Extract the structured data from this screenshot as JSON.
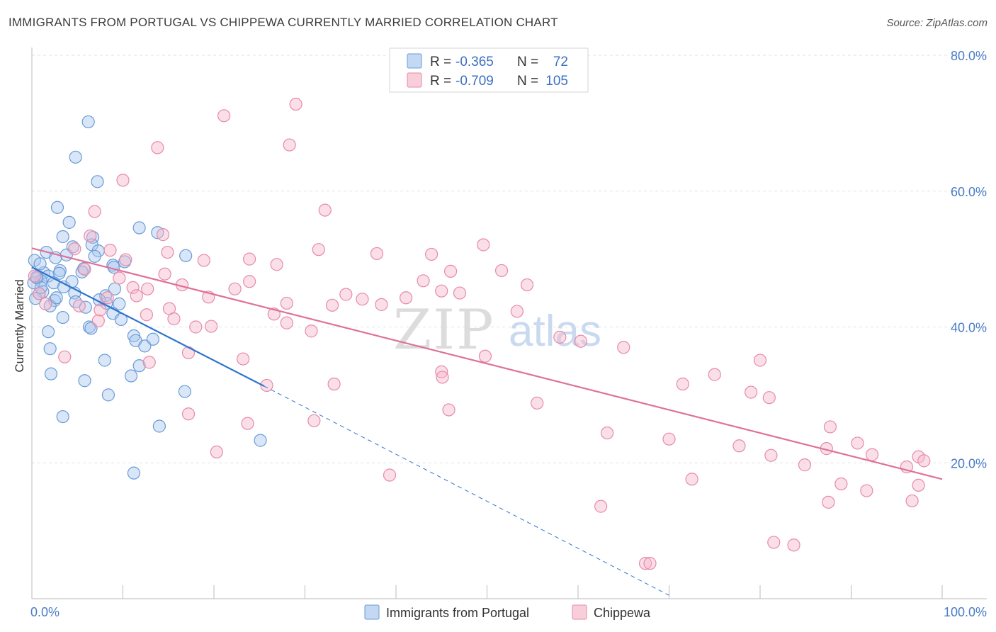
{
  "header": {
    "title": "IMMIGRANTS FROM PORTUGAL VS CHIPPEWA CURRENTLY MARRIED CORRELATION CHART",
    "source": "Source: ZipAtlas.com"
  },
  "watermark": {
    "zip": "ZIP",
    "atlas": "atlas"
  },
  "legend": {
    "rows": [
      {
        "r_label": "R =",
        "r_value": "-0.365",
        "n_label": "N =",
        "n_value": "72",
        "color": "#a8c8ee",
        "stroke": "#6a9bd8"
      },
      {
        "r_label": "R =",
        "r_value": "-0.709",
        "n_label": "N =",
        "n_value": "105",
        "color": "#f6b9cc",
        "stroke": "#e68aa8"
      }
    ],
    "bottom": [
      {
        "label": "Immigrants from Portugal",
        "color": "#a8c8ee",
        "stroke": "#6a9bd8"
      },
      {
        "label": "Chippewa",
        "color": "#f6b9cc",
        "stroke": "#e68aa8"
      }
    ]
  },
  "chart_data": {
    "type": "scatter",
    "xlabel": "",
    "ylabel": "Currently Married",
    "xlim": [
      0,
      100
    ],
    "ylim": [
      0,
      80
    ],
    "x_tick_labels": [
      "0.0%",
      "100.0%"
    ],
    "y_ticks": [
      20,
      40,
      60,
      80
    ],
    "y_tick_labels": [
      "20.0%",
      "40.0%",
      "60.0%",
      "80.0%"
    ],
    "grid": true,
    "legend_position": "top-center",
    "series": [
      {
        "name": "Immigrants from Portugal",
        "color": "#a8c8ee",
        "stroke": "#6a9bd8",
        "line_color": "#2f74d0",
        "trend": {
          "x0": 0,
          "y0": 48.8,
          "x1": 25.5,
          "y1": 31.3,
          "dash_to_x": 70,
          "dash_to_y": 0.5
        },
        "points": [
          [
            6.2,
            70.2
          ],
          [
            4.8,
            65.0
          ],
          [
            7.2,
            61.4
          ],
          [
            2.8,
            57.6
          ],
          [
            4.1,
            55.4
          ],
          [
            11.8,
            54.6
          ],
          [
            3.4,
            53.3
          ],
          [
            6.7,
            53.2
          ],
          [
            13.8,
            53.9
          ],
          [
            6.6,
            52.1
          ],
          [
            4.5,
            51.8
          ],
          [
            1.6,
            51.0
          ],
          [
            7.3,
            51.2
          ],
          [
            3.8,
            50.6
          ],
          [
            2.6,
            50.2
          ],
          [
            6.9,
            50.4
          ],
          [
            16.9,
            50.5
          ],
          [
            0.3,
            49.8
          ],
          [
            8.9,
            49.1
          ],
          [
            10.2,
            49.6
          ],
          [
            5.7,
            48.6
          ],
          [
            9.0,
            48.8
          ],
          [
            3.1,
            48.3
          ],
          [
            1.3,
            48.0
          ],
          [
            5.5,
            48.1
          ],
          [
            3.0,
            47.9
          ],
          [
            0.6,
            47.2
          ],
          [
            1.8,
            47.5
          ],
          [
            1.0,
            46.8
          ],
          [
            0.2,
            46.5
          ],
          [
            2.4,
            46.5
          ],
          [
            3.5,
            45.9
          ],
          [
            1.2,
            45.2
          ],
          [
            0.8,
            44.9
          ],
          [
            4.7,
            45.0
          ],
          [
            8.1,
            44.6
          ],
          [
            0.4,
            44.2
          ],
          [
            2.5,
            43.9
          ],
          [
            4.8,
            43.7
          ],
          [
            8.2,
            43.5
          ],
          [
            9.6,
            43.4
          ],
          [
            2.0,
            43.1
          ],
          [
            8.9,
            42.0
          ],
          [
            3.4,
            41.4
          ],
          [
            9.8,
            41.1
          ],
          [
            6.3,
            40.0
          ],
          [
            6.5,
            39.8
          ],
          [
            1.8,
            39.3
          ],
          [
            11.2,
            38.7
          ],
          [
            11.4,
            38.0
          ],
          [
            13.3,
            38.2
          ],
          [
            12.4,
            37.2
          ],
          [
            2.0,
            36.8
          ],
          [
            8.0,
            35.1
          ],
          [
            11.8,
            34.3
          ],
          [
            2.1,
            33.1
          ],
          [
            10.9,
            32.8
          ],
          [
            5.8,
            32.1
          ],
          [
            16.8,
            30.5
          ],
          [
            8.4,
            30.0
          ],
          [
            3.4,
            26.8
          ],
          [
            14.0,
            25.4
          ],
          [
            25.1,
            23.3
          ],
          [
            11.2,
            18.5
          ],
          [
            1.0,
            45.8
          ],
          [
            0.5,
            47.3
          ],
          [
            5.9,
            42.9
          ],
          [
            2.7,
            44.3
          ],
          [
            4.4,
            46.7
          ],
          [
            7.4,
            44.0
          ],
          [
            0.9,
            49.3
          ],
          [
            9.1,
            45.6
          ]
        ]
      },
      {
        "name": "Chippewa",
        "color": "#f6b9cc",
        "stroke": "#e68aa8",
        "line_color": "#e0709a",
        "trend": {
          "x0": 0,
          "y0": 51.6,
          "x1": 100,
          "y1": 17.6
        },
        "points": [
          [
            29.0,
            72.8
          ],
          [
            21.1,
            71.1
          ],
          [
            28.3,
            66.8
          ],
          [
            13.8,
            66.4
          ],
          [
            10.0,
            61.6
          ],
          [
            32.2,
            57.2
          ],
          [
            6.9,
            57.0
          ],
          [
            14.4,
            53.6
          ],
          [
            6.4,
            53.4
          ],
          [
            49.6,
            52.1
          ],
          [
            31.5,
            51.4
          ],
          [
            14.9,
            51.0
          ],
          [
            8.6,
            51.3
          ],
          [
            37.9,
            50.8
          ],
          [
            43.9,
            50.7
          ],
          [
            10.3,
            49.9
          ],
          [
            18.9,
            49.8
          ],
          [
            23.9,
            50.0
          ],
          [
            26.9,
            49.2
          ],
          [
            5.8,
            48.5
          ],
          [
            46.0,
            48.2
          ],
          [
            51.6,
            48.3
          ],
          [
            14.6,
            47.8
          ],
          [
            9.6,
            47.2
          ],
          [
            43.0,
            46.8
          ],
          [
            23.9,
            46.7
          ],
          [
            54.4,
            46.2
          ],
          [
            11.1,
            45.8
          ],
          [
            12.7,
            45.6
          ],
          [
            22.3,
            45.6
          ],
          [
            45.0,
            45.3
          ],
          [
            47.0,
            45.0
          ],
          [
            11.5,
            44.6
          ],
          [
            8.3,
            44.3
          ],
          [
            34.5,
            44.8
          ],
          [
            36.3,
            44.1
          ],
          [
            28.0,
            43.5
          ],
          [
            33.0,
            43.2
          ],
          [
            38.4,
            43.3
          ],
          [
            5.2,
            43.1
          ],
          [
            15.1,
            42.7
          ],
          [
            7.5,
            42.5
          ],
          [
            53.3,
            42.3
          ],
          [
            12.6,
            41.8
          ],
          [
            15.6,
            41.2
          ],
          [
            28.0,
            40.6
          ],
          [
            18.0,
            40.0
          ],
          [
            19.7,
            40.1
          ],
          [
            30.7,
            39.4
          ],
          [
            58.0,
            38.5
          ],
          [
            65.0,
            37.0
          ],
          [
            17.2,
            36.2
          ],
          [
            3.6,
            35.6
          ],
          [
            49.8,
            35.7
          ],
          [
            23.2,
            35.3
          ],
          [
            12.9,
            34.8
          ],
          [
            80.0,
            35.1
          ],
          [
            45.0,
            33.4
          ],
          [
            75.0,
            33.0
          ],
          [
            45.1,
            32.6
          ],
          [
            71.5,
            31.6
          ],
          [
            25.8,
            31.4
          ],
          [
            79.0,
            30.4
          ],
          [
            81.0,
            29.6
          ],
          [
            55.5,
            28.8
          ],
          [
            45.8,
            27.8
          ],
          [
            17.2,
            27.2
          ],
          [
            31.0,
            26.2
          ],
          [
            23.7,
            25.8
          ],
          [
            87.7,
            25.3
          ],
          [
            63.2,
            24.4
          ],
          [
            70.0,
            23.5
          ],
          [
            77.7,
            22.5
          ],
          [
            90.7,
            22.9
          ],
          [
            87.3,
            22.1
          ],
          [
            20.3,
            21.6
          ],
          [
            81.2,
            21.1
          ],
          [
            92.3,
            21.2
          ],
          [
            97.4,
            20.9
          ],
          [
            98.0,
            20.3
          ],
          [
            84.9,
            19.7
          ],
          [
            96.1,
            19.4
          ],
          [
            39.3,
            18.2
          ],
          [
            72.5,
            17.6
          ],
          [
            88.9,
            16.9
          ],
          [
            97.4,
            16.7
          ],
          [
            91.7,
            15.9
          ],
          [
            87.5,
            14.2
          ],
          [
            96.7,
            14.4
          ],
          [
            62.5,
            13.6
          ],
          [
            81.5,
            8.3
          ],
          [
            83.7,
            7.9
          ],
          [
            67.4,
            5.2
          ],
          [
            67.9,
            5.2
          ],
          [
            33.2,
            31.6
          ],
          [
            1.5,
            43.4
          ],
          [
            0.8,
            44.9
          ],
          [
            0.3,
            47.5
          ],
          [
            4.7,
            51.5
          ],
          [
            16.5,
            46.2
          ],
          [
            60.3,
            37.9
          ],
          [
            26.6,
            41.9
          ],
          [
            41.1,
            44.3
          ],
          [
            7.3,
            40.9
          ],
          [
            19.4,
            44.4
          ]
        ]
      }
    ]
  }
}
